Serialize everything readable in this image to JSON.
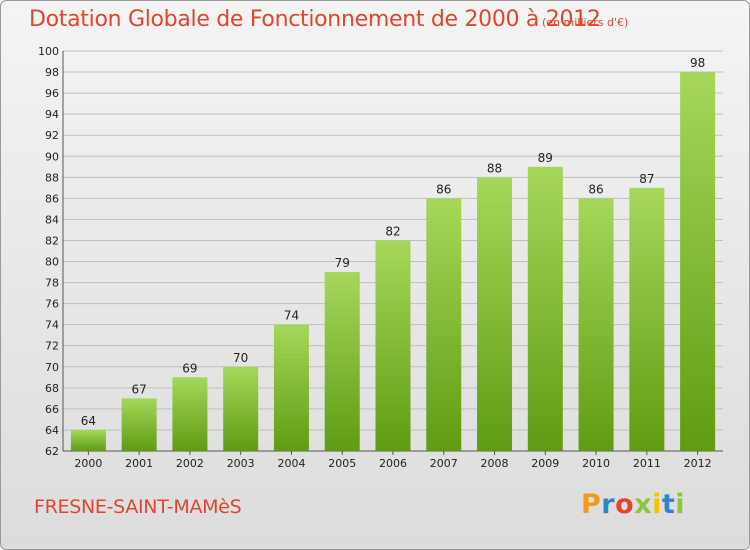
{
  "header": {
    "title": "Dotation Globale de Fonctionnement de 2000 à 2012",
    "subtitle": "(en milliers d'€)"
  },
  "footer": {
    "commune": "FRESNE-SAINT-MAMèS",
    "logo_letters": [
      "P",
      "r",
      "o",
      "x",
      "i",
      "t",
      "i"
    ],
    "logo_colors": [
      "#f29a1a",
      "#2e86c8",
      "#e2452b",
      "#8cc63e",
      "#f2c400",
      "#2e86c8",
      "#8cc63e"
    ]
  },
  "colors": {
    "bar_light": "#a6d75a",
    "bar_dark": "#5f9c12",
    "grid": "#bfbfbf",
    "accent": "#e0462f"
  },
  "chart_data": {
    "type": "bar",
    "categories": [
      "2000",
      "2001",
      "2002",
      "2003",
      "2004",
      "2005",
      "2006",
      "2007",
      "2008",
      "2009",
      "2010",
      "2011",
      "2012"
    ],
    "values": [
      64,
      67,
      69,
      70,
      74,
      79,
      82,
      86,
      88,
      89,
      86,
      87,
      98
    ],
    "title": "Dotation Globale de Fonctionnement de 2000 à 2012",
    "subtitle": "(en milliers d'€)",
    "ylim": [
      62,
      100
    ],
    "yticks": [
      62,
      64,
      66,
      68,
      70,
      72,
      74,
      76,
      78,
      80,
      82,
      84,
      86,
      88,
      90,
      92,
      94,
      96,
      98,
      100
    ],
    "grid": true,
    "legend": "none"
  }
}
